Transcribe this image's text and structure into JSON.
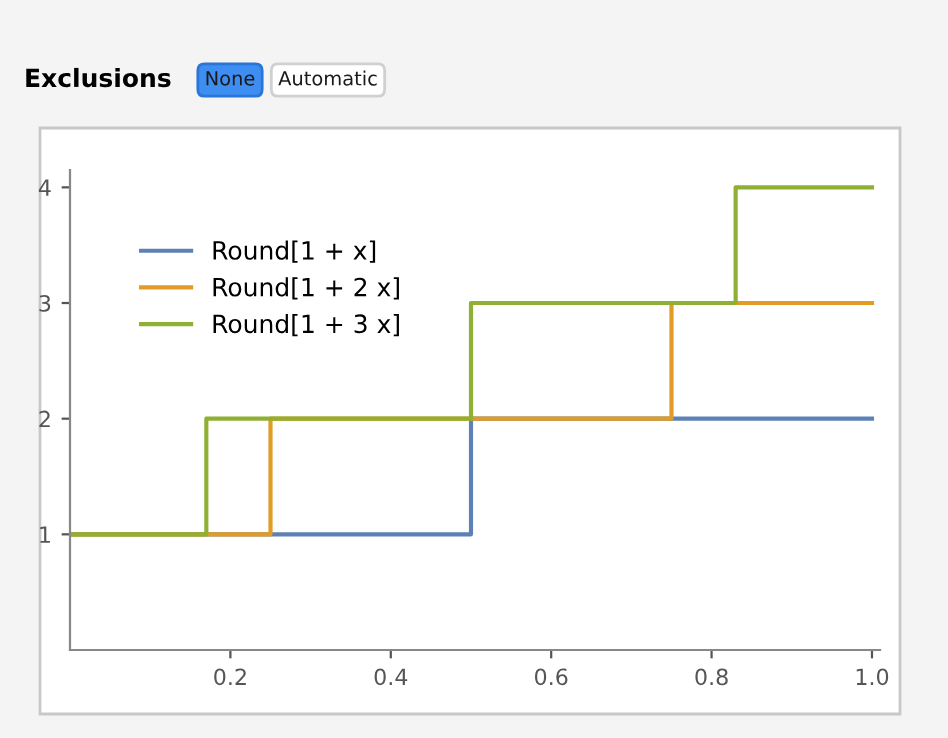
{
  "chart_data": {
    "type": "step",
    "annotations": [
      "Exclusions",
      "None",
      "Automatic"
    ],
    "xlim": [
      0,
      1.01
    ],
    "ylim": [
      0,
      4.15
    ],
    "xticks": [
      0.2,
      0.4,
      0.6,
      0.8,
      {
        "value": 1,
        "label": "1.0"
      }
    ],
    "yticks": [
      1,
      2,
      3,
      4
    ],
    "legend": "top left",
    "grid": false,
    "line_style": "solid",
    "series": [
      {
        "name": "Round[1 + x]",
        "color": "#5e81b5",
        "x": [
          0,
          0.5,
          1
        ],
        "values": [
          1,
          2,
          2
        ]
      },
      {
        "name": "Round[1 + 2 x]",
        "color": "#e19c24",
        "x": [
          0,
          0.25,
          0.75,
          1
        ],
        "values": [
          1,
          2,
          3,
          3
        ]
      },
      {
        "name": "Round[1 + 3 x]",
        "color": "#8fb032",
        "x": [
          0,
          0.17,
          0.5,
          0.83,
          1
        ],
        "values": [
          1,
          2,
          3,
          4,
          4
        ]
      }
    ]
  }
}
